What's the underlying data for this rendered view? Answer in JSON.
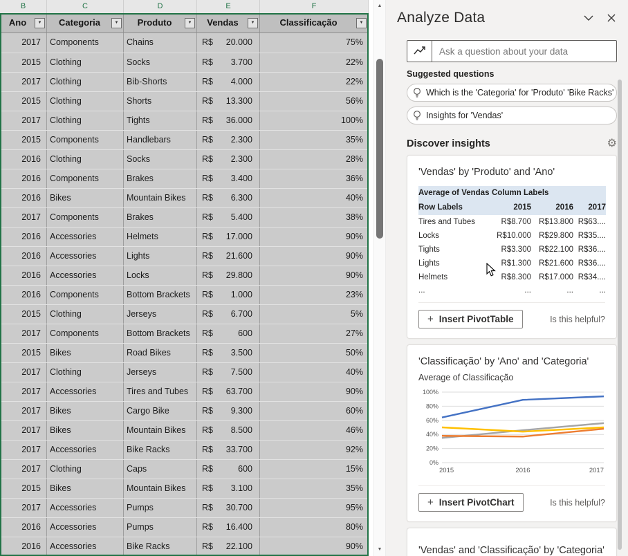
{
  "spreadsheet": {
    "column_letters": [
      "B",
      "C",
      "D",
      "E",
      "F"
    ],
    "currency_symbol": "R$",
    "table": {
      "headers": [
        "Ano",
        "Categoria",
        "Produto",
        "Vendas",
        "Classificação"
      ],
      "rows": [
        [
          "2017",
          "Components",
          "Chains",
          "20.000",
          "75%"
        ],
        [
          "2015",
          "Clothing",
          "Socks",
          "3.700",
          "22%"
        ],
        [
          "2017",
          "Clothing",
          "Bib-Shorts",
          "4.000",
          "22%"
        ],
        [
          "2015",
          "Clothing",
          "Shorts",
          "13.300",
          "56%"
        ],
        [
          "2017",
          "Clothing",
          "Tights",
          "36.000",
          "100%"
        ],
        [
          "2015",
          "Components",
          "Handlebars",
          "2.300",
          "35%"
        ],
        [
          "2016",
          "Clothing",
          "Socks",
          "2.300",
          "28%"
        ],
        [
          "2016",
          "Components",
          "Brakes",
          "3.400",
          "36%"
        ],
        [
          "2016",
          "Bikes",
          "Mountain Bikes",
          "6.300",
          "40%"
        ],
        [
          "2017",
          "Components",
          "Brakes",
          "5.400",
          "38%"
        ],
        [
          "2016",
          "Accessories",
          "Helmets",
          "17.000",
          "90%"
        ],
        [
          "2016",
          "Accessories",
          "Lights",
          "21.600",
          "90%"
        ],
        [
          "2016",
          "Accessories",
          "Locks",
          "29.800",
          "90%"
        ],
        [
          "2016",
          "Components",
          "Bottom Brackets",
          "1.000",
          "23%"
        ],
        [
          "2015",
          "Clothing",
          "Jerseys",
          "6.700",
          "5%"
        ],
        [
          "2017",
          "Components",
          "Bottom Brackets",
          "600",
          "27%"
        ],
        [
          "2015",
          "Bikes",
          "Road Bikes",
          "3.500",
          "50%"
        ],
        [
          "2017",
          "Clothing",
          "Jerseys",
          "7.500",
          "40%"
        ],
        [
          "2017",
          "Accessories",
          "Tires and Tubes",
          "63.700",
          "90%"
        ],
        [
          "2017",
          "Bikes",
          "Cargo Bike",
          "9.300",
          "60%"
        ],
        [
          "2017",
          "Bikes",
          "Mountain Bikes",
          "8.500",
          "46%"
        ],
        [
          "2017",
          "Accessories",
          "Bike Racks",
          "33.700",
          "92%"
        ],
        [
          "2017",
          "Clothing",
          "Caps",
          "600",
          "15%"
        ],
        [
          "2015",
          "Bikes",
          "Mountain Bikes",
          "3.100",
          "35%"
        ],
        [
          "2017",
          "Accessories",
          "Pumps",
          "30.700",
          "95%"
        ],
        [
          "2016",
          "Accessories",
          "Pumps",
          "16.400",
          "80%"
        ],
        [
          "2016",
          "Accessories",
          "Bike Racks",
          "22.100",
          "90%"
        ]
      ]
    }
  },
  "panel": {
    "title": "Analyze Data",
    "search": {
      "placeholder": "Ask a question about your data"
    },
    "suggested_label": "Suggested questions",
    "suggestions": [
      "Which is the 'Categoria' for 'Produto' 'Bike Racks'",
      "Insights for 'Vendas'"
    ],
    "discover_label": "Discover insights",
    "pivot_card": {
      "title": "'Vendas' by 'Produto' and 'Ano'",
      "corner_label": "Average of Vendas",
      "column_labels_label": "Column Labels",
      "row_labels_label": "Row Labels",
      "years": [
        "2015",
        "2016",
        "2017"
      ],
      "rows": [
        [
          "Tires and Tubes",
          "R$8.700",
          "R$13.800",
          "R$63...."
        ],
        [
          "Locks",
          "R$10.000",
          "R$29.800",
          "R$35...."
        ],
        [
          "Tights",
          "R$3.300",
          "R$22.100",
          "R$36...."
        ],
        [
          "Lights",
          "R$1.300",
          "R$21.600",
          "R$36...."
        ],
        [
          "Helmets",
          "R$8.300",
          "R$17.000",
          "R$34...."
        ]
      ],
      "ellipsis_row": [
        "...",
        "...",
        "...",
        "..."
      ],
      "insert_button": "Insert PivotTable",
      "helpful_label": "Is this helpful?"
    },
    "chart_card": {
      "title": "'Classificação' by 'Ano' and 'Categoria'",
      "subtitle": "Average of Classificação",
      "insert_button": "Insert PivotChart",
      "helpful_label": "Is this helpful?"
    },
    "third_card": {
      "title": "'Vendas' and 'Classificação' by 'Categoria'"
    }
  },
  "chart_data": {
    "type": "line",
    "title": "'Classificação' by 'Ano' and 'Categoria'",
    "ylabel": "Average of Classificação",
    "x": [
      "2015",
      "2016",
      "2017"
    ],
    "yticks": [
      "0%",
      "20%",
      "40%",
      "60%",
      "80%",
      "100%"
    ],
    "ylim": [
      0,
      100
    ],
    "grid": true,
    "legend": "none",
    "series": [
      {
        "name": "blue-series",
        "color": "#4472C4",
        "values": [
          64,
          89,
          94
        ]
      },
      {
        "name": "gray-series",
        "color": "#A5A5A5",
        "values": [
          35,
          46,
          56
        ]
      },
      {
        "name": "yellow-series",
        "color": "#FFC000",
        "values": [
          50,
          44,
          50
        ]
      },
      {
        "name": "orange-series",
        "color": "#ED7D31",
        "values": [
          38,
          37,
          48
        ]
      }
    ]
  },
  "colors": {
    "accent_green": "#217346",
    "pivot_header_blue": "#DCE6F1",
    "row_gray": "#CBCBCB",
    "header_gray": "#BFBFBF"
  }
}
